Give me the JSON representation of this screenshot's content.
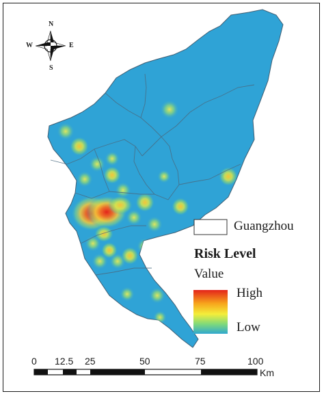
{
  "compass": {
    "north": "N",
    "south": "S",
    "east": "E",
    "west": "W"
  },
  "legend": {
    "boundary_label": "Guangzhou",
    "title": "Risk Level",
    "subtitle": "Value",
    "high_label": "High",
    "low_label": "Low",
    "gradient_colors": [
      "#e3241b",
      "#f7a21b",
      "#f4ee3a",
      "#7fd97a",
      "#2fa8cf"
    ]
  },
  "scale_bar": {
    "ticks": [
      "0",
      "12.5",
      "25",
      "50",
      "75",
      "100"
    ],
    "unit": "Km"
  },
  "colors": {
    "base": "#2fa3d6",
    "boundary": "#4a6a80",
    "hot": "#e3241b"
  }
}
